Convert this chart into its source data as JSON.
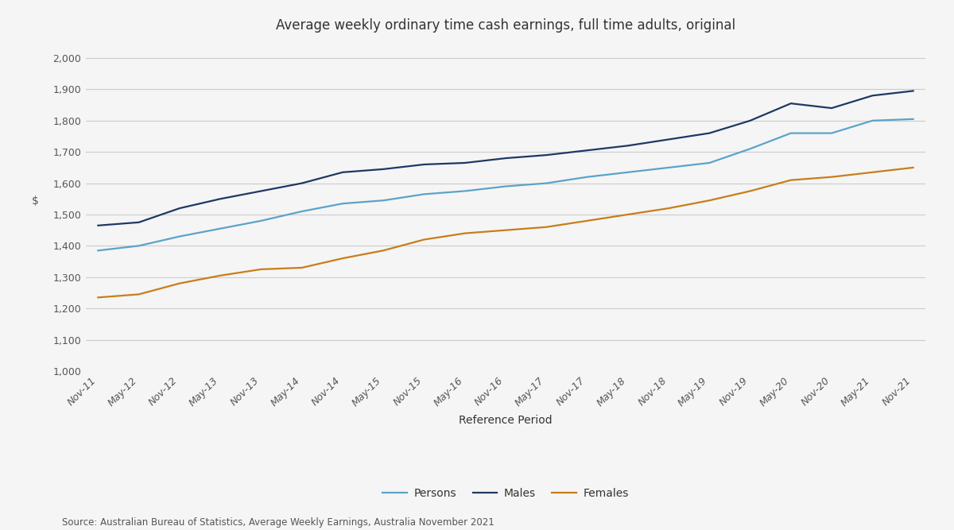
{
  "title": "Average weekly ordinary time cash earnings, full time adults, original",
  "xlabel": "Reference Period",
  "ylabel": "$",
  "source_text": "Source: Australian Bureau of Statistics, Average Weekly Earnings, Australia November 2021",
  "x_labels": [
    "Nov-11",
    "May-12",
    "Nov-12",
    "May-13",
    "Nov-13",
    "May-14",
    "Nov-14",
    "May-15",
    "Nov-15",
    "May-16",
    "Nov-16",
    "May-17",
    "Nov-17",
    "May-18",
    "Nov-18",
    "May-19",
    "Nov-19",
    "May-20",
    "Nov-20",
    "May-21",
    "Nov-21"
  ],
  "persons": [
    1385,
    1400,
    1430,
    1455,
    1480,
    1510,
    1535,
    1545,
    1565,
    1575,
    1590,
    1600,
    1620,
    1635,
    1650,
    1665,
    1710,
    1760,
    1760,
    1800,
    1805
  ],
  "males": [
    1465,
    1475,
    1520,
    1550,
    1575,
    1600,
    1635,
    1645,
    1660,
    1665,
    1680,
    1690,
    1705,
    1720,
    1740,
    1760,
    1800,
    1855,
    1840,
    1880,
    1895
  ],
  "females": [
    1235,
    1245,
    1280,
    1305,
    1325,
    1330,
    1360,
    1385,
    1420,
    1440,
    1450,
    1460,
    1480,
    1500,
    1520,
    1545,
    1575,
    1610,
    1620,
    1635,
    1650
  ],
  "persons_color": "#5ba3c9",
  "males_color": "#1f3864",
  "females_color": "#c97d1a",
  "ylim": [
    1000,
    2050
  ],
  "yticks": [
    1000,
    1100,
    1200,
    1300,
    1400,
    1500,
    1600,
    1700,
    1800,
    1900,
    2000
  ],
  "background_color": "#f5f5f5",
  "plot_bg_color": "#f5f5f5",
  "grid_color": "#cccccc",
  "title_fontsize": 12,
  "axis_label_fontsize": 10,
  "tick_fontsize": 9,
  "legend_fontsize": 10,
  "source_fontsize": 8.5
}
